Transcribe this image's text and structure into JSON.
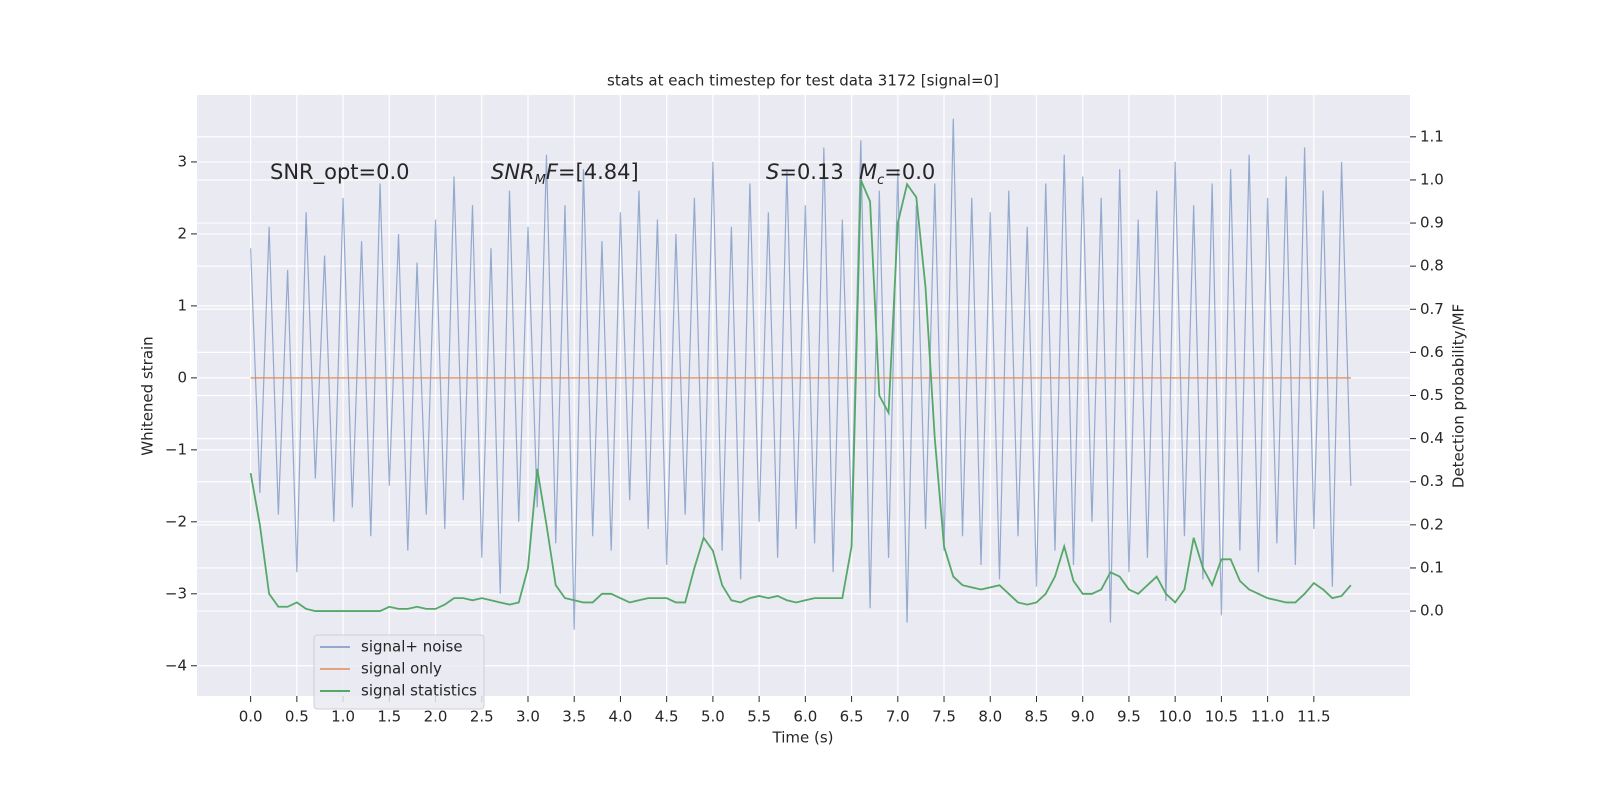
{
  "chart_data": {
    "type": "line",
    "title": "stats at each timestep for test data 3172 [signal=0]",
    "xlabel": "Time (s)",
    "ylabel": "Whitened strain",
    "y2label": "Detection probability/MF",
    "annotations": [
      [
        {
          "text": "SNR_opt=0.0"
        }
      ],
      [
        {
          "text": "SNR",
          "italic": true
        },
        {
          "text": "M",
          "italic": true,
          "sub": true
        },
        {
          "text": "F",
          "italic": true
        },
        {
          "text": "=[4.84]"
        }
      ],
      [
        {
          "text": "S",
          "italic": true
        },
        {
          "text": "=0.13"
        }
      ],
      [
        {
          "text": "M",
          "italic": true
        },
        {
          "text": "c",
          "italic": true,
          "sub": true
        },
        {
          "text": "=0.0"
        }
      ]
    ],
    "xlim": [
      -0.58,
      12.54
    ],
    "ylim": [
      -4.42,
      3.93
    ],
    "y2lim": [
      -0.197,
      1.197
    ],
    "xticks": [
      {
        "value": 0,
        "label": "0.0"
      },
      0.5,
      {
        "value": 1,
        "label": "1.0"
      },
      1.5,
      {
        "value": 2,
        "label": "2.0"
      },
      2.5,
      {
        "value": 3,
        "label": "3.0"
      },
      3.5,
      {
        "value": 4,
        "label": "4.0"
      },
      4.5,
      {
        "value": 5,
        "label": "5.0"
      },
      5.5,
      {
        "value": 6,
        "label": "6.0"
      },
      6.5,
      {
        "value": 7,
        "label": "7.0"
      },
      7.5,
      {
        "value": 8,
        "label": "8.0"
      },
      8.5,
      {
        "value": 9,
        "label": "9.0"
      },
      9.5,
      {
        "value": 10,
        "label": "10.0"
      },
      10.5,
      {
        "value": 11,
        "label": "11.0"
      },
      11.5
    ],
    "yticks": [
      {
        "value": -4,
        "label": "−4"
      },
      {
        "value": -3,
        "label": "−3"
      },
      {
        "value": -2,
        "label": "−2"
      },
      {
        "value": -1,
        "label": "−1"
      },
      0,
      1,
      2,
      3
    ],
    "y2ticks": [
      {
        "value": 0,
        "label": "0.0"
      },
      0.1,
      0.2,
      0.3,
      0.4,
      0.5,
      0.6,
      0.7,
      0.8,
      0.9,
      {
        "value": 1,
        "label": "1.0"
      },
      1.1
    ],
    "grid": true,
    "legend": "lower left",
    "series": [
      {
        "name": "signal+ noise",
        "color": "#4c72b0",
        "opacity": 0.55,
        "x": [
          0.0,
          0.1,
          0.2,
          0.3,
          0.4,
          0.5,
          0.6,
          0.7,
          0.8,
          0.9,
          1.0,
          1.1,
          1.2,
          1.3,
          1.4,
          1.5,
          1.6,
          1.7,
          1.8,
          1.9,
          2.0,
          2.1,
          2.2,
          2.3,
          2.4,
          2.5,
          2.6,
          2.7,
          2.8,
          2.9,
          3.0,
          3.1,
          3.2,
          3.3,
          3.4,
          3.5,
          3.6,
          3.7,
          3.8,
          3.9,
          4.0,
          4.1,
          4.2,
          4.3,
          4.4,
          4.5,
          4.6,
          4.7,
          4.8,
          4.9,
          5.0,
          5.1,
          5.2,
          5.3,
          5.4,
          5.5,
          5.6,
          5.7,
          5.8,
          5.9,
          6.0,
          6.1,
          6.2,
          6.3,
          6.4,
          6.5,
          6.6,
          6.7,
          6.8,
          6.9,
          7.0,
          7.1,
          7.2,
          7.3,
          7.4,
          7.5,
          7.6,
          7.7,
          7.8,
          7.9,
          8.0,
          8.1,
          8.2,
          8.3,
          8.4,
          8.5,
          8.6,
          8.7,
          8.8,
          8.9,
          9.0,
          9.1,
          9.2,
          9.3,
          9.4,
          9.5,
          9.6,
          9.7,
          9.8,
          9.9,
          10.0,
          10.1,
          10.2,
          10.3,
          10.4,
          10.5,
          10.6,
          10.7,
          10.8,
          10.9,
          11.0,
          11.1,
          11.2,
          11.3,
          11.4,
          11.5,
          11.6,
          11.7,
          11.8,
          11.9
        ],
        "values": [
          1.8,
          -1.6,
          2.1,
          -1.9,
          1.5,
          -2.7,
          2.3,
          -1.4,
          1.7,
          -2.0,
          2.5,
          -1.8,
          1.9,
          -2.2,
          2.7,
          -1.5,
          2.0,
          -2.4,
          1.6,
          -1.9,
          2.2,
          -2.1,
          2.8,
          -1.7,
          2.4,
          -2.5,
          1.8,
          -3.0,
          2.6,
          -2.0,
          2.1,
          -1.8,
          3.1,
          -2.3,
          2.4,
          -3.5,
          2.9,
          -2.2,
          1.9,
          -2.4,
          2.3,
          -1.7,
          2.6,
          -2.1,
          2.2,
          -2.6,
          2.0,
          -1.9,
          2.5,
          -2.2,
          3.0,
          -2.4,
          2.1,
          -2.8,
          2.7,
          -2.0,
          2.3,
          -2.5,
          2.9,
          -2.1,
          2.4,
          -2.3,
          3.2,
          -2.7,
          2.2,
          -2.0,
          3.3,
          -3.2,
          2.6,
          -2.5,
          2.9,
          -3.4,
          2.4,
          -2.1,
          2.7,
          -2.4,
          3.6,
          -2.2,
          2.5,
          -2.6,
          2.3,
          -2.8,
          2.6,
          -2.2,
          2.1,
          -2.9,
          2.7,
          -2.4,
          3.1,
          -2.6,
          2.8,
          -2.0,
          2.5,
          -3.4,
          2.9,
          -2.7,
          2.2,
          -2.5,
          2.6,
          -3.1,
          3.0,
          -2.2,
          2.4,
          -2.8,
          2.7,
          -3.3,
          2.9,
          -2.4,
          3.1,
          -2.7,
          2.5,
          -2.3,
          2.8,
          -2.6,
          3.2,
          -2.1,
          2.6,
          -2.9,
          3.0,
          -1.5
        ]
      },
      {
        "name": "signal only",
        "color": "#dd8452",
        "opacity": 0.7,
        "x": [
          0.0,
          11.9
        ],
        "values": [
          0,
          0
        ]
      },
      {
        "name": "signal statistics",
        "color": "#55a868",
        "opacity": 1,
        "axis": "y2",
        "x": [
          0.0,
          0.1,
          0.2,
          0.3,
          0.4,
          0.5,
          0.6,
          0.7,
          0.8,
          0.9,
          1.0,
          1.1,
          1.2,
          1.3,
          1.4,
          1.5,
          1.6,
          1.7,
          1.8,
          1.9,
          2.0,
          2.1,
          2.2,
          2.3,
          2.4,
          2.5,
          2.6,
          2.7,
          2.8,
          2.9,
          3.0,
          3.1,
          3.2,
          3.3,
          3.4,
          3.5,
          3.6,
          3.7,
          3.8,
          3.9,
          4.0,
          4.1,
          4.2,
          4.3,
          4.4,
          4.5,
          4.6,
          4.7,
          4.8,
          4.9,
          5.0,
          5.1,
          5.2,
          5.3,
          5.4,
          5.5,
          5.6,
          5.7,
          5.8,
          5.9,
          6.0,
          6.1,
          6.2,
          6.3,
          6.4,
          6.5,
          6.6,
          6.7,
          6.8,
          6.9,
          7.0,
          7.1,
          7.2,
          7.3,
          7.4,
          7.5,
          7.6,
          7.7,
          7.8,
          7.9,
          8.0,
          8.1,
          8.2,
          8.3,
          8.4,
          8.5,
          8.6,
          8.7,
          8.8,
          8.9,
          9.0,
          9.1,
          9.2,
          9.3,
          9.4,
          9.5,
          9.6,
          9.7,
          9.8,
          9.9,
          10.0,
          10.1,
          10.2,
          10.3,
          10.4,
          10.5,
          10.6,
          10.7,
          10.8,
          10.9,
          11.0,
          11.1,
          11.2,
          11.3,
          11.4,
          11.5,
          11.6,
          11.7,
          11.8,
          11.9
        ],
        "values": [
          0.32,
          0.2,
          0.04,
          0.01,
          0.01,
          0.02,
          0.005,
          0.0,
          0.0,
          0.0,
          0.0,
          0.0,
          0.0,
          0.0,
          0.0,
          0.01,
          0.005,
          0.005,
          0.01,
          0.005,
          0.005,
          0.015,
          0.03,
          0.03,
          0.025,
          0.03,
          0.025,
          0.02,
          0.015,
          0.02,
          0.1,
          0.33,
          0.2,
          0.06,
          0.03,
          0.025,
          0.02,
          0.02,
          0.04,
          0.04,
          0.03,
          0.02,
          0.025,
          0.03,
          0.03,
          0.03,
          0.02,
          0.02,
          0.1,
          0.17,
          0.14,
          0.06,
          0.025,
          0.02,
          0.03,
          0.035,
          0.03,
          0.035,
          0.025,
          0.02,
          0.025,
          0.03,
          0.03,
          0.03,
          0.03,
          0.15,
          1.0,
          0.95,
          0.5,
          0.46,
          0.9,
          0.99,
          0.96,
          0.75,
          0.4,
          0.15,
          0.08,
          0.06,
          0.055,
          0.05,
          0.055,
          0.06,
          0.04,
          0.02,
          0.015,
          0.02,
          0.04,
          0.08,
          0.15,
          0.07,
          0.04,
          0.04,
          0.05,
          0.09,
          0.08,
          0.05,
          0.04,
          0.06,
          0.08,
          0.04,
          0.02,
          0.05,
          0.17,
          0.1,
          0.06,
          0.12,
          0.12,
          0.07,
          0.05,
          0.04,
          0.03,
          0.025,
          0.02,
          0.02,
          0.04,
          0.065,
          0.05,
          0.03,
          0.035,
          0.06
        ]
      }
    ]
  }
}
